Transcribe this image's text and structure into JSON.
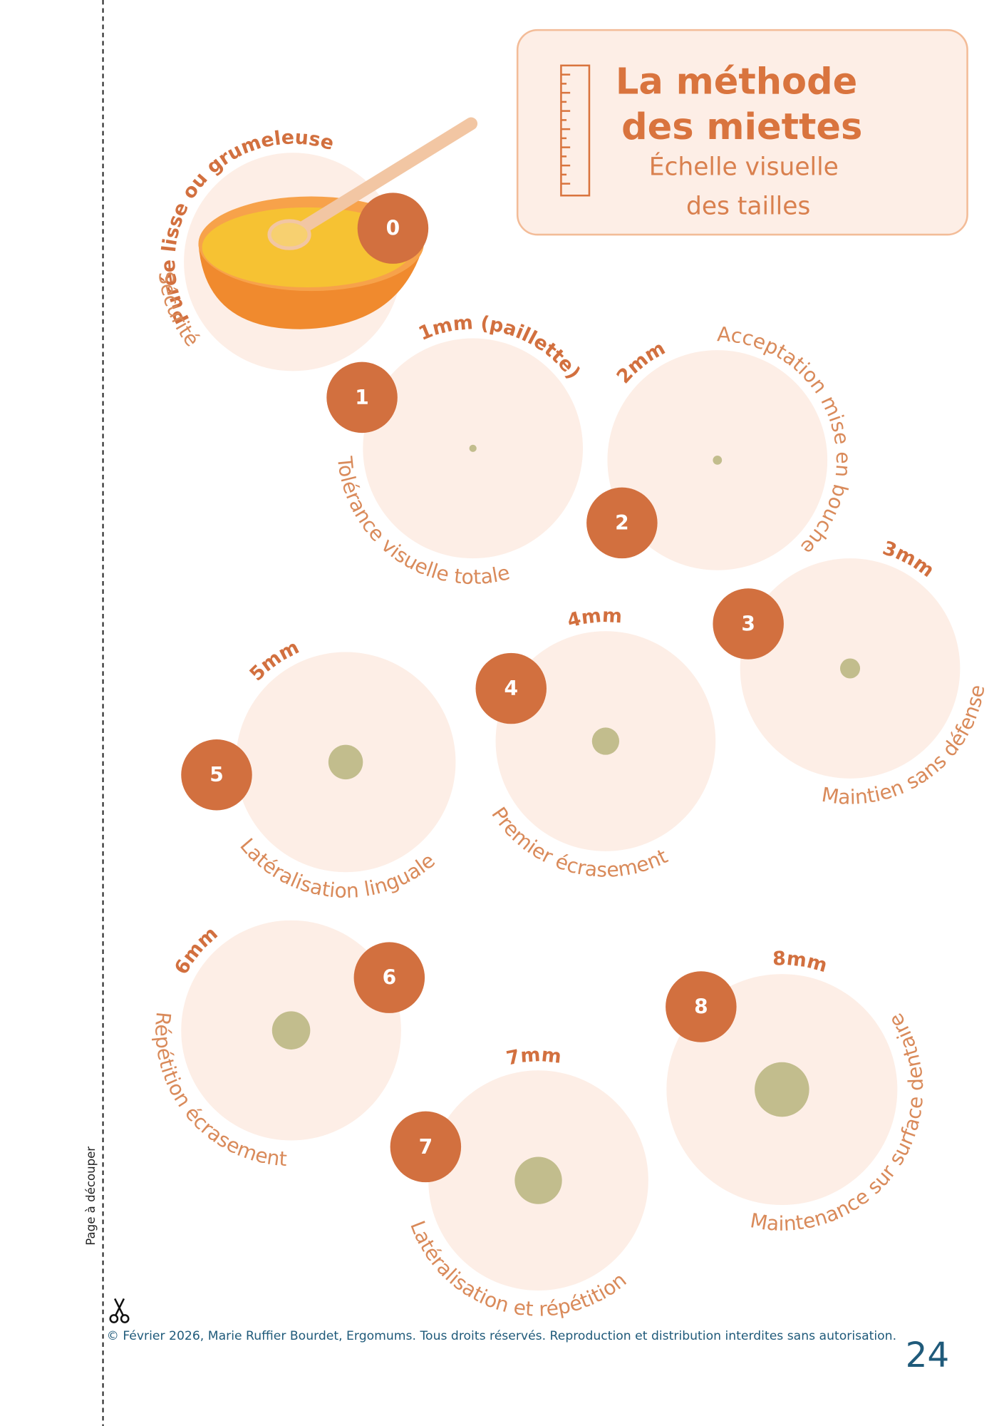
{
  "header": {
    "title": [
      "La méthode",
      "des miettes"
    ],
    "subtitle": [
      "Échelle visuelle",
      "des tailles"
    ]
  },
  "items": [
    {
      "number": "0",
      "size": "Purée lisse ou grumeleuse",
      "description": "Sécurité"
    },
    {
      "number": "1",
      "size": "1mm (paillette)",
      "description": "Tolérance visuelle totale"
    },
    {
      "number": "2",
      "size": "2mm",
      "description": "Acceptation mise en bouche"
    },
    {
      "number": "3",
      "size": "3mm",
      "description": "Maintien sans défense"
    },
    {
      "number": "4",
      "size": "4mm",
      "description": "Premier écrasement"
    },
    {
      "number": "5",
      "size": "5mm",
      "description": "Latéralisation linguale"
    },
    {
      "number": "6",
      "size": "6mm",
      "description": "Répétition écrasement"
    },
    {
      "number": "7",
      "size": "7mm",
      "description": "Latéralisation et répétition"
    },
    {
      "number": "8",
      "size": "8mm",
      "description": "Maintenance sur surface dentaire"
    }
  ],
  "side_label": "Page à découper",
  "footer": {
    "copyright": "© Février 2026, Marie Ruffier Bourdet, Ergomums. Tous droits réservés. Reproduction et distribution interdites sans autorisation.",
    "page": "24"
  }
}
